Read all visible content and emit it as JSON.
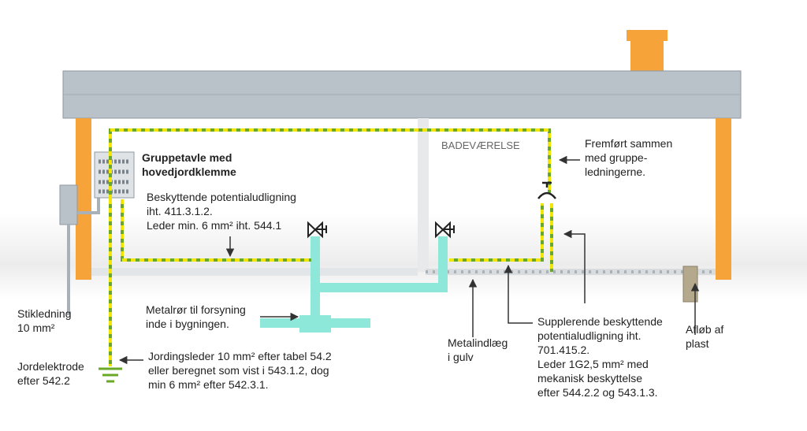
{
  "callouts": {
    "panel": [
      "Gruppetavle med",
      "hovedjordklemme"
    ],
    "bonding": [
      "Beskyttende potentialudligning",
      "iht. 411.3.1.2.",
      "Leder min. 6 mm² iht. 544.1"
    ],
    "room": "BADEVÆRELSE",
    "routed": [
      "Fremført sammen",
      "med gruppe-",
      "ledningerne."
    ],
    "service": [
      "Stikledning",
      "10 mm²"
    ],
    "metal_pipe": [
      "Metalrør til forsyning",
      "inde i bygningen."
    ],
    "electrode": [
      "Jordelektrode",
      "efter 542.2"
    ],
    "earthing": [
      "Jordingsleder 10 mm² efter tabel 54.2",
      "eller beregnet som vist i 543.1.2, dog",
      "min 6 mm² efter 542.3.1."
    ],
    "floor_insert": [
      "Metalindlæg",
      "i gulv"
    ],
    "supplementary": [
      "Supplerende beskyttende",
      "potentialudligning iht.",
      "701.415.2.",
      "Leder 1G2,5 mm² med",
      "mekanisk beskyttelse",
      "efter 544.2.2 og 543.1.3."
    ],
    "drain": [
      "Afløb af",
      "plast"
    ]
  }
}
